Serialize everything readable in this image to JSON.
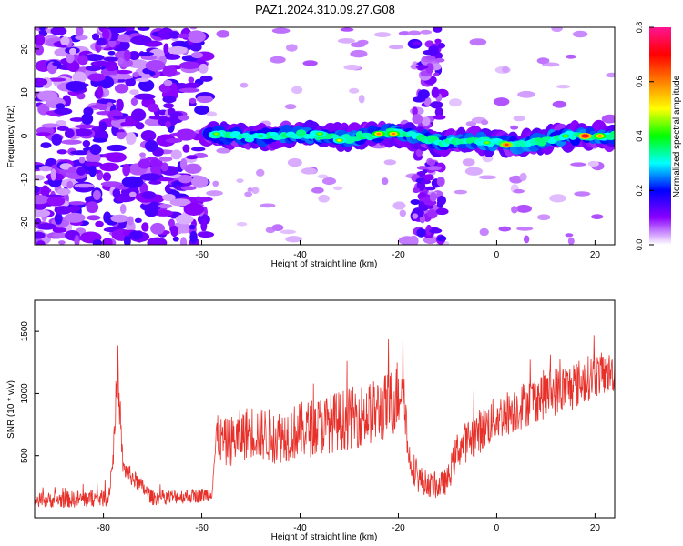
{
  "figure": {
    "title": "PAZ1.2024.310.09.27.G08"
  },
  "chart_data": [
    {
      "type": "heatmap",
      "xlabel": "Height of straight line (km)",
      "ylabel": "Frequency (Hz)",
      "xlim": [
        -94,
        24
      ],
      "ylim": [
        -25,
        25
      ],
      "x_ticks": [
        -80,
        -60,
        -40,
        -20,
        0,
        20
      ],
      "y_ticks": [
        -20,
        -10,
        0,
        10,
        20
      ],
      "colorbar": {
        "label": "Normalized spectral amplitude",
        "range": [
          0,
          0.8
        ],
        "ticks": [
          0.0,
          0.2,
          0.4,
          0.6,
          0.8
        ],
        "colors": [
          "#ffffff",
          "#8b00ff",
          "#0000ff",
          "#00ffff",
          "#00ff00",
          "#ffff00",
          "#ff8000",
          "#ff0000",
          "#ff1493"
        ]
      },
      "ridge": {
        "description_points": [
          {
            "x": -58,
            "y": 0.5
          },
          {
            "x": -50,
            "y": -0.5
          },
          {
            "x": -40,
            "y": 0.5
          },
          {
            "x": -30,
            "y": -0.5
          },
          {
            "x": -20,
            "y": 1.0
          },
          {
            "x": -12,
            "y": -1.5
          },
          {
            "x": -5,
            "y": -1.0
          },
          {
            "x": 0,
            "y": -1.5
          },
          {
            "x": 5,
            "y": -2.0
          },
          {
            "x": 10,
            "y": -1.0
          },
          {
            "x": 15,
            "y": 0.0
          },
          {
            "x": 24,
            "y": 0.0
          }
        ],
        "peaks": [
          {
            "x": -57,
            "y": 0.5,
            "amp": 0.45
          },
          {
            "x": -48,
            "y": 0.0,
            "amp": 0.4
          },
          {
            "x": -36,
            "y": 0.5,
            "amp": 0.45
          },
          {
            "x": -32,
            "y": -1.0,
            "amp": 0.5
          },
          {
            "x": -24,
            "y": 0.5,
            "amp": 0.6
          },
          {
            "x": -21,
            "y": 0.5,
            "amp": 0.6
          },
          {
            "x": -2,
            "y": -1.5,
            "amp": 0.45
          },
          {
            "x": 2,
            "y": -2.0,
            "amp": 0.65
          },
          {
            "x": 14,
            "y": 0.0,
            "amp": 0.45
          },
          {
            "x": 18,
            "y": 0.0,
            "amp": 0.75
          },
          {
            "x": 21,
            "y": 0.0,
            "amp": 0.6
          }
        ]
      },
      "grid": false
    },
    {
      "type": "line",
      "xlabel": "Height of straight line (km)",
      "ylabel": "SNR (10 * v/v)",
      "xlim": [
        -94,
        24
      ],
      "ylim": [
        0,
        1750
      ],
      "x_ticks": [
        -80,
        -60,
        -40,
        -20,
        0,
        20
      ],
      "y_ticks": [
        500,
        1000,
        1500
      ],
      "series": [
        {
          "color": "#e8302a",
          "envelope": {
            "x": [
              -94,
              -85,
              -79,
              -78,
              -77.5,
              -77,
              -76,
              -70,
              -65,
              -60,
              -58,
              -57,
              -55,
              -50,
              -45,
              -40,
              -35,
              -30,
              -25,
              -22,
              -20,
              -19,
              -18,
              -16,
              -14,
              -12,
              -10,
              -8,
              -5,
              0,
              5,
              10,
              15,
              20,
              24
            ],
            "y": [
              140,
              150,
              160,
              500,
              950,
              1050,
              400,
              160,
              170,
              180,
              200,
              650,
              600,
              700,
              650,
              700,
              750,
              800,
              850,
              900,
              1000,
              1150,
              500,
              320,
              270,
              250,
              300,
              550,
              650,
              800,
              900,
              1000,
              1050,
              1150,
              1170
            ],
            "noise": [
              60,
              70,
              70,
              100,
              150,
              150,
              80,
              60,
              60,
              60,
              60,
              180,
              200,
              220,
              220,
              230,
              240,
              250,
              260,
              280,
              300,
              250,
              150,
              120,
              100,
              100,
              110,
              150,
              180,
              180,
              190,
              200,
              200,
              180,
              160
            ]
          }
        }
      ],
      "grid": false
    }
  ]
}
